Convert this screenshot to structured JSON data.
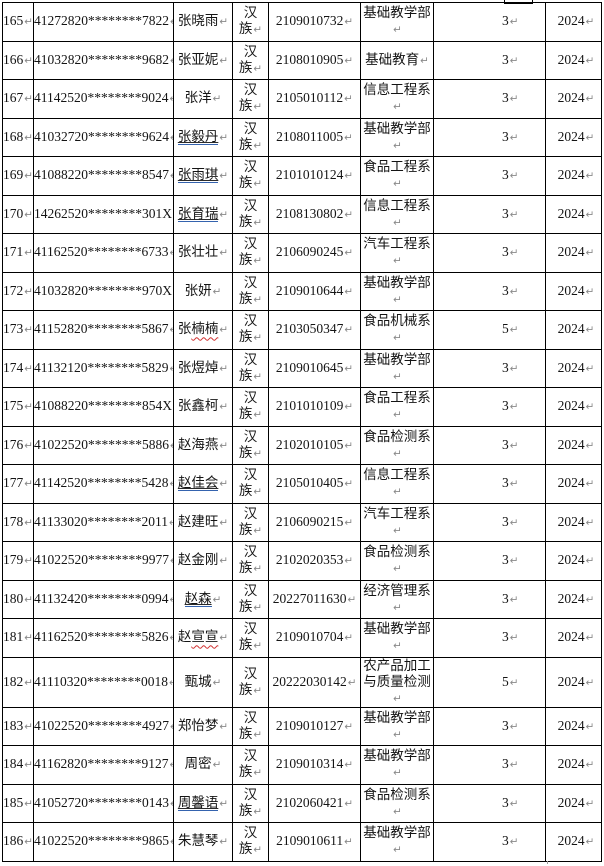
{
  "page": {
    "background": "#ffffff",
    "border_color": "#000000",
    "blue_underline_color": "#3563ae",
    "spellcheck_wavy_color": "#d03030",
    "paragraph_mark_color": "#8a8a8a",
    "pilcrow": "↵"
  },
  "table": {
    "rows": [
      {
        "num": "165",
        "id": "41272820********7822",
        "name_parts": [
          {
            "t": "张晓雨",
            "u": "none"
          }
        ],
        "ethnic": [
          "汉",
          "族"
        ],
        "sid": "2109010732",
        "dept": [
          "基础教学部"
        ],
        "count": "3",
        "year": "2024"
      },
      {
        "num": "166",
        "id": "41032820********9682",
        "name_parts": [
          {
            "t": "张亚妮",
            "u": "none"
          }
        ],
        "ethnic": [
          "汉",
          "族"
        ],
        "sid": "2108010905",
        "dept": [
          "基础教育"
        ],
        "count": "3",
        "year": "2024"
      },
      {
        "num": "167",
        "id": "41142520********9024",
        "name_parts": [
          {
            "t": "张洋",
            "u": "none"
          }
        ],
        "ethnic": [
          "汉",
          "族"
        ],
        "sid": "2105010112",
        "dept": [
          "信息工程系"
        ],
        "count": "3",
        "year": "2024"
      },
      {
        "num": "168",
        "id": "41032720********9624",
        "name_parts": [
          {
            "t": "张毅丹",
            "u": "blue"
          }
        ],
        "ethnic": [
          "汉",
          "族"
        ],
        "sid": "2108011005",
        "dept": [
          "基础教学部"
        ],
        "count": "3",
        "year": "2024"
      },
      {
        "num": "169",
        "id": "41088220********8547",
        "name_parts": [
          {
            "t": "张雨琪",
            "u": "blue"
          }
        ],
        "ethnic": [
          "汉",
          "族"
        ],
        "sid": "2101010124",
        "dept": [
          "食品工程系"
        ],
        "count": "3",
        "year": "2024"
      },
      {
        "num": "170",
        "id": "14262520********301X",
        "name_parts": [
          {
            "t": "张育瑞",
            "u": "blue"
          }
        ],
        "ethnic": [
          "汉",
          "族"
        ],
        "sid": "2108130802",
        "dept": [
          "信息工程系"
        ],
        "count": "3",
        "year": "2024"
      },
      {
        "num": "171",
        "id": "41162520********6733",
        "name_parts": [
          {
            "t": "张壮壮",
            "u": "none"
          }
        ],
        "ethnic": [
          "汉",
          "族"
        ],
        "sid": "2106090245",
        "dept": [
          "汽车工程系"
        ],
        "count": "3",
        "year": "2024"
      },
      {
        "num": "172",
        "id": "41032820********970X",
        "name_parts": [
          {
            "t": "张妍",
            "u": "none"
          }
        ],
        "ethnic": [
          "汉",
          "族"
        ],
        "sid": "2109010644",
        "dept": [
          "基础教学部"
        ],
        "count": "3",
        "year": "2024"
      },
      {
        "num": "173",
        "id": "41152820********5867",
        "name_parts": [
          {
            "t": "张",
            "u": "none"
          },
          {
            "t": "楠楠",
            "u": "wavy"
          }
        ],
        "ethnic": [
          "汉",
          "族"
        ],
        "sid": "2103050347",
        "dept": [
          "食品机械系"
        ],
        "count": "5",
        "year": "2024"
      },
      {
        "num": "174",
        "id": "41132120********5829",
        "name_parts": [
          {
            "t": "张煜焯",
            "u": "none"
          }
        ],
        "ethnic": [
          "汉",
          "族"
        ],
        "sid": "2109010645",
        "dept": [
          "基础教学部"
        ],
        "count": "3",
        "year": "2024"
      },
      {
        "num": "175",
        "id": "41088220********854X",
        "name_parts": [
          {
            "t": "张鑫柯",
            "u": "none"
          }
        ],
        "ethnic": [
          "汉",
          "族"
        ],
        "sid": "2101010109",
        "dept": [
          "食品工程系"
        ],
        "count": "3",
        "year": "2024"
      },
      {
        "num": "176",
        "id": "41022520********5886",
        "name_parts": [
          {
            "t": "赵海燕",
            "u": "none"
          }
        ],
        "ethnic": [
          "汉",
          "族"
        ],
        "sid": "2102010105",
        "dept": [
          "食品检测系"
        ],
        "count": "3",
        "year": "2024"
      },
      {
        "num": "177",
        "id": "41142520********5428",
        "name_parts": [
          {
            "t": "赵佳会",
            "u": "blue"
          }
        ],
        "ethnic": [
          "汉",
          "族"
        ],
        "sid": "2105010405",
        "dept": [
          "信息工程系"
        ],
        "count": "3",
        "year": "2024"
      },
      {
        "num": "178",
        "id": "41133020********2011",
        "name_parts": [
          {
            "t": "赵建旺",
            "u": "none"
          }
        ],
        "ethnic": [
          "汉",
          "族"
        ],
        "sid": "2106090215",
        "dept": [
          "汽车工程系"
        ],
        "count": "3",
        "year": "2024"
      },
      {
        "num": "179",
        "id": "41022520********9977",
        "name_parts": [
          {
            "t": "赵金刚",
            "u": "none"
          }
        ],
        "ethnic": [
          "汉",
          "族"
        ],
        "sid": "2102020353",
        "dept": [
          "食品检测系"
        ],
        "count": "3",
        "year": "2024"
      },
      {
        "num": "180",
        "id": "41132420********0994",
        "name_parts": [
          {
            "t": "赵森",
            "u": "blue"
          }
        ],
        "ethnic": [
          "汉",
          "族"
        ],
        "sid": "20227011630",
        "dept": [
          "经济管理系"
        ],
        "count": "3",
        "year": "2024"
      },
      {
        "num": "181",
        "id": "41162520********5826",
        "name_parts": [
          {
            "t": "赵",
            "u": "none"
          },
          {
            "t": "宣宣",
            "u": "wavy"
          }
        ],
        "ethnic": [
          "汉",
          "族"
        ],
        "sid": "2109010704",
        "dept": [
          "基础教学部"
        ],
        "count": "3",
        "year": "2024"
      },
      {
        "num": "182",
        "id": "41110320********0018",
        "name_parts": [
          {
            "t": "甄城",
            "u": "none"
          }
        ],
        "ethnic": [
          "汉",
          "族"
        ],
        "sid": "20222030142",
        "dept": [
          "农产品加工",
          "与质量检测"
        ],
        "count": "5",
        "year": "2024"
      },
      {
        "num": "183",
        "id": "41022520********4927",
        "name_parts": [
          {
            "t": "郑怡梦",
            "u": "none"
          }
        ],
        "ethnic": [
          "汉",
          "族"
        ],
        "sid": "2109010127",
        "dept": [
          "基础教学部"
        ],
        "count": "3",
        "year": "2024"
      },
      {
        "num": "184",
        "id": "41162820********9127",
        "name_parts": [
          {
            "t": "周密",
            "u": "none"
          }
        ],
        "ethnic": [
          "汉",
          "族"
        ],
        "sid": "2109010314",
        "dept": [
          "基础教学部"
        ],
        "count": "3",
        "year": "2024"
      },
      {
        "num": "185",
        "id": "41052720********0143",
        "name_parts": [
          {
            "t": "周馨语",
            "u": "blue"
          }
        ],
        "ethnic": [
          "汉",
          "族"
        ],
        "sid": "2102060421",
        "dept": [
          "食品检测系"
        ],
        "count": "3",
        "year": "2024"
      },
      {
        "num": "186",
        "id": "41022520********9865",
        "name_parts": [
          {
            "t": "朱慧琴",
            "u": "none"
          }
        ],
        "ethnic": [
          "汉",
          "族"
        ],
        "sid": "2109010611",
        "dept": [
          "基础教学部"
        ],
        "count": "3",
        "year": "2024"
      }
    ]
  }
}
